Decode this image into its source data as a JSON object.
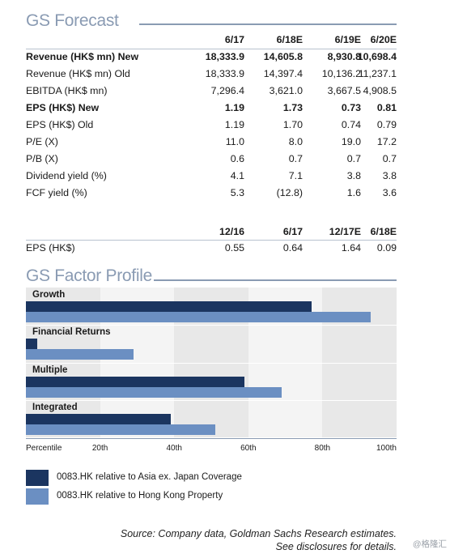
{
  "forecast": {
    "title": "GS Forecast",
    "headers": [
      "6/17",
      "6/18E",
      "6/19E",
      "6/20E"
    ],
    "rows": [
      {
        "label": "Revenue (HK$ mn) New",
        "values": [
          "18,333.9",
          "14,605.8",
          "8,930.8",
          "10,698.4"
        ],
        "bold": true
      },
      {
        "label": "Revenue (HK$ mn) Old",
        "values": [
          "18,333.9",
          "14,397.4",
          "10,136.2",
          "11,237.1"
        ],
        "bold": false
      },
      {
        "label": "EBITDA (HK$ mn)",
        "values": [
          "7,296.4",
          "3,621.0",
          "3,667.5",
          "4,908.5"
        ],
        "bold": false
      },
      {
        "label": "EPS (HK$) New",
        "values": [
          "1.19",
          "1.73",
          "0.73",
          "0.81"
        ],
        "bold": true
      },
      {
        "label": "EPS (HK$) Old",
        "values": [
          "1.19",
          "1.70",
          "0.74",
          "0.79"
        ],
        "bold": false
      },
      {
        "label": "P/E (X)",
        "values": [
          "11.0",
          "8.0",
          "19.0",
          "17.2"
        ],
        "bold": false
      },
      {
        "label": "P/B (X)",
        "values": [
          "0.6",
          "0.7",
          "0.7",
          "0.7"
        ],
        "bold": false
      },
      {
        "label": "Dividend yield (%)",
        "values": [
          "4.1",
          "7.1",
          "3.8",
          "3.8"
        ],
        "bold": false
      },
      {
        "label": "FCF yield (%)",
        "values": [
          "5.3",
          "(12.8)",
          "1.6",
          "3.6"
        ],
        "bold": false
      }
    ],
    "eps_headers": [
      "12/16",
      "6/17",
      "12/17E",
      "6/18E"
    ],
    "eps_row": {
      "label": "EPS (HK$)",
      "values": [
        "0.55",
        "0.64",
        "1.64",
        "0.09"
      ]
    }
  },
  "factor_profile": {
    "title": "GS Factor Profile",
    "groups": [
      {
        "label": "Growth",
        "asia": 77,
        "hk": 93
      },
      {
        "label": "Financial Returns",
        "asia": 3,
        "hk": 29
      },
      {
        "label": "Multiple",
        "asia": 59,
        "hk": 69
      },
      {
        "label": "Integrated",
        "asia": 39,
        "hk": 51
      }
    ],
    "axis_labels": [
      "Percentile",
      "20th",
      "40th",
      "60th",
      "80th",
      "100th"
    ],
    "legend": [
      {
        "label": "0083.HK relative to Asia ex. Japan Coverage",
        "color": "#1b3560"
      },
      {
        "label": "0083.HK relative to Hong Kong Property",
        "color": "#6b8fc2"
      }
    ]
  },
  "footnote": {
    "line1": "Source: Company data, Goldman Sachs Research estimates.",
    "line2": "See disclosures for details."
  },
  "watermark": "@格隆汇",
  "colors": {
    "title": "#8a9bb3",
    "dark_bar": "#1b3560",
    "light_bar": "#6b8fc2",
    "band": "#e8e8e8"
  }
}
